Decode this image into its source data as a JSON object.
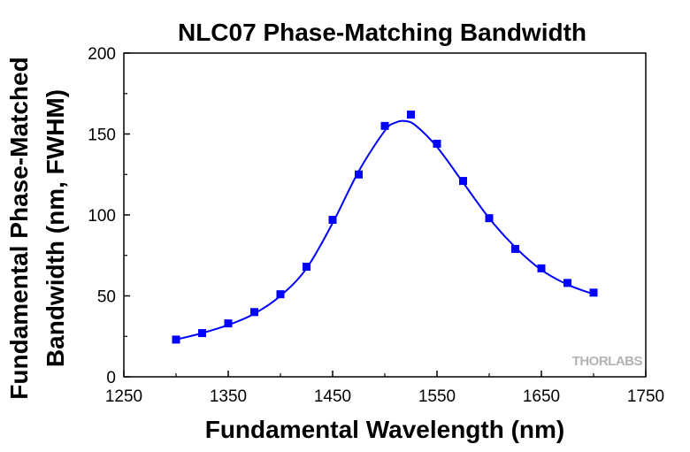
{
  "chart_data": {
    "type": "scatter",
    "title": "NLC07 Phase-Matching Bandwidth",
    "xlabel": "Fundamental Wavelength (nm)",
    "ylabel_line1": "Fundamental Phase-Matched",
    "ylabel_line2": "Bandwidth (nm, FWHM)",
    "xlim": [
      1250,
      1750
    ],
    "ylim": [
      0,
      200
    ],
    "xticks": [
      1250,
      1350,
      1450,
      1550,
      1650,
      1750
    ],
    "yticks": [
      0,
      50,
      100,
      150,
      200
    ],
    "xtick_labels": [
      "1250",
      "1350",
      "1450",
      "1550",
      "1650",
      "1750"
    ],
    "ytick_labels": [
      "0",
      "50",
      "100",
      "150",
      "200"
    ],
    "grid": false,
    "legend": "none",
    "series": [
      {
        "marker": "square",
        "color": "#0000ff",
        "x": [
          1300,
          1325,
          1350,
          1375,
          1400,
          1425,
          1450,
          1475,
          1500,
          1525,
          1550,
          1575,
          1600,
          1625,
          1650,
          1675,
          1700
        ],
        "y": [
          23,
          27,
          33,
          40,
          51,
          68,
          97,
          125,
          155,
          162,
          144,
          121,
          98,
          79,
          67,
          58,
          52
        ]
      }
    ],
    "fit_curve": {
      "color": "#0000ff",
      "x": [
        1300,
        1325,
        1350,
        1375,
        1400,
        1425,
        1450,
        1475,
        1500,
        1510,
        1520,
        1530,
        1550,
        1575,
        1600,
        1625,
        1650,
        1675,
        1700
      ],
      "y": [
        23,
        27,
        32,
        39,
        50,
        67,
        95,
        127,
        152,
        157,
        158,
        155,
        142,
        120,
        98,
        80,
        66,
        57,
        51
      ]
    }
  },
  "watermark": "THORLABS"
}
